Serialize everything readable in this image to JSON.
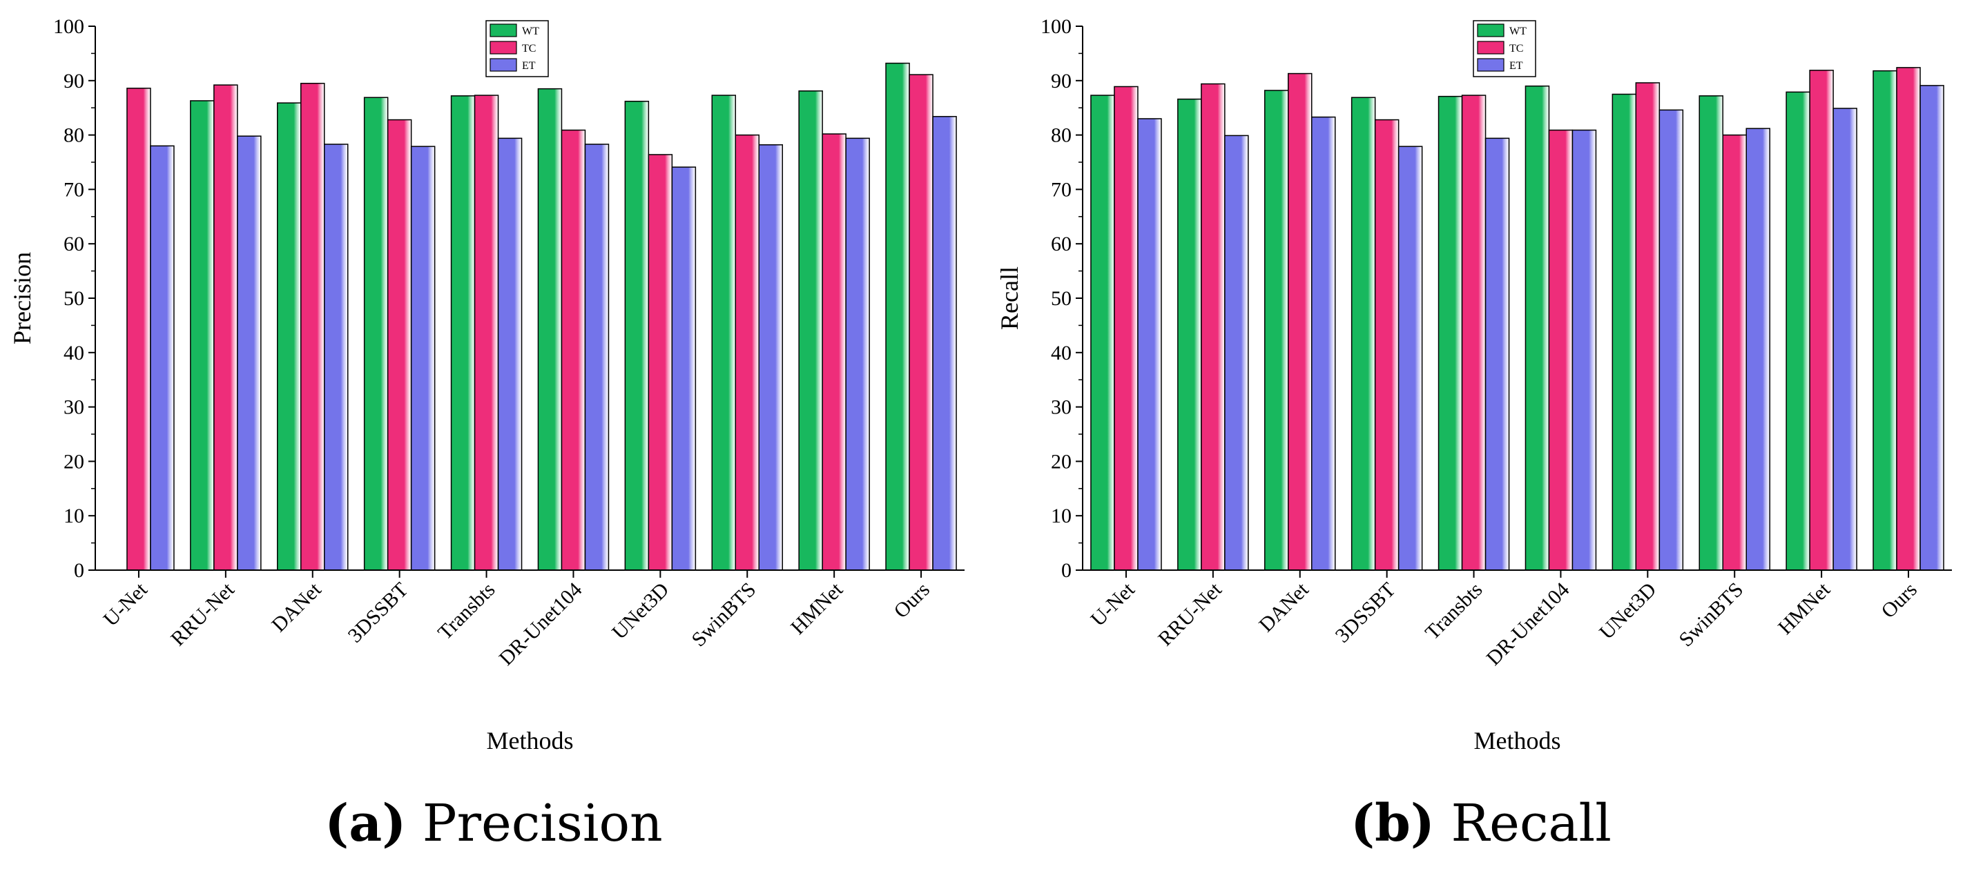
{
  "colors": {
    "WT": "#18b85e",
    "TC": "#ee2d7a",
    "ET": "#7474ea",
    "axis": "#000000"
  },
  "chart_data": [
    {
      "type": "bar",
      "title": "",
      "xlabel": "Methods",
      "ylabel": "Precision",
      "ylim": [
        0,
        100
      ],
      "yticks": [
        "0",
        "10",
        "20",
        "30",
        "40",
        "50",
        "60",
        "70",
        "80",
        "90",
        "100"
      ],
      "categories": [
        "U-Net",
        "RRU-Net",
        "DANet",
        "3DSSBT",
        "Transbts",
        "DR-Unet104",
        "UNet3D",
        "SwinBTS",
        "HMNet",
        "Ours"
      ],
      "series": [
        {
          "name": "WT",
          "values": [
            null,
            86.3,
            85.9,
            86.9,
            87.2,
            88.5,
            86.2,
            87.3,
            88.1,
            93.2
          ]
        },
        {
          "name": "TC",
          "values": [
            88.6,
            89.2,
            89.5,
            82.8,
            87.3,
            80.9,
            76.4,
            80.0,
            80.2,
            91.1
          ]
        },
        {
          "name": "ET",
          "values": [
            78.0,
            79.8,
            78.3,
            77.9,
            79.4,
            78.3,
            74.1,
            78.2,
            79.4,
            83.4
          ]
        }
      ],
      "legend": [
        "WT",
        "TC",
        "ET"
      ],
      "legend_position": "top-center",
      "caption_letter": "(a)",
      "caption_text": "Precision"
    },
    {
      "type": "bar",
      "title": "",
      "xlabel": "Methods",
      "ylabel": "Recall",
      "ylim": [
        0,
        100
      ],
      "yticks": [
        "0",
        "10",
        "20",
        "30",
        "40",
        "50",
        "60",
        "70",
        "80",
        "90",
        "100"
      ],
      "categories": [
        "U-Net",
        "RRU-Net",
        "DANet",
        "3DSSBT",
        "Transbts",
        "DR-Unet104",
        "UNet3D",
        "SwinBTS",
        "HMNet",
        "Ours"
      ],
      "series": [
        {
          "name": "WT",
          "values": [
            87.3,
            86.6,
            88.2,
            86.9,
            87.1,
            89.0,
            87.5,
            87.2,
            87.9,
            91.8
          ]
        },
        {
          "name": "TC",
          "values": [
            88.9,
            89.4,
            91.3,
            82.8,
            87.3,
            80.9,
            89.6,
            80.0,
            91.9,
            92.4
          ]
        },
        {
          "name": "ET",
          "values": [
            83.0,
            79.9,
            83.3,
            77.9,
            79.4,
            80.9,
            84.6,
            81.2,
            84.9,
            89.1
          ]
        }
      ],
      "legend": [
        "WT",
        "TC",
        "ET"
      ],
      "legend_position": "top-center",
      "caption_letter": "(b)",
      "caption_text": "Recall"
    }
  ]
}
